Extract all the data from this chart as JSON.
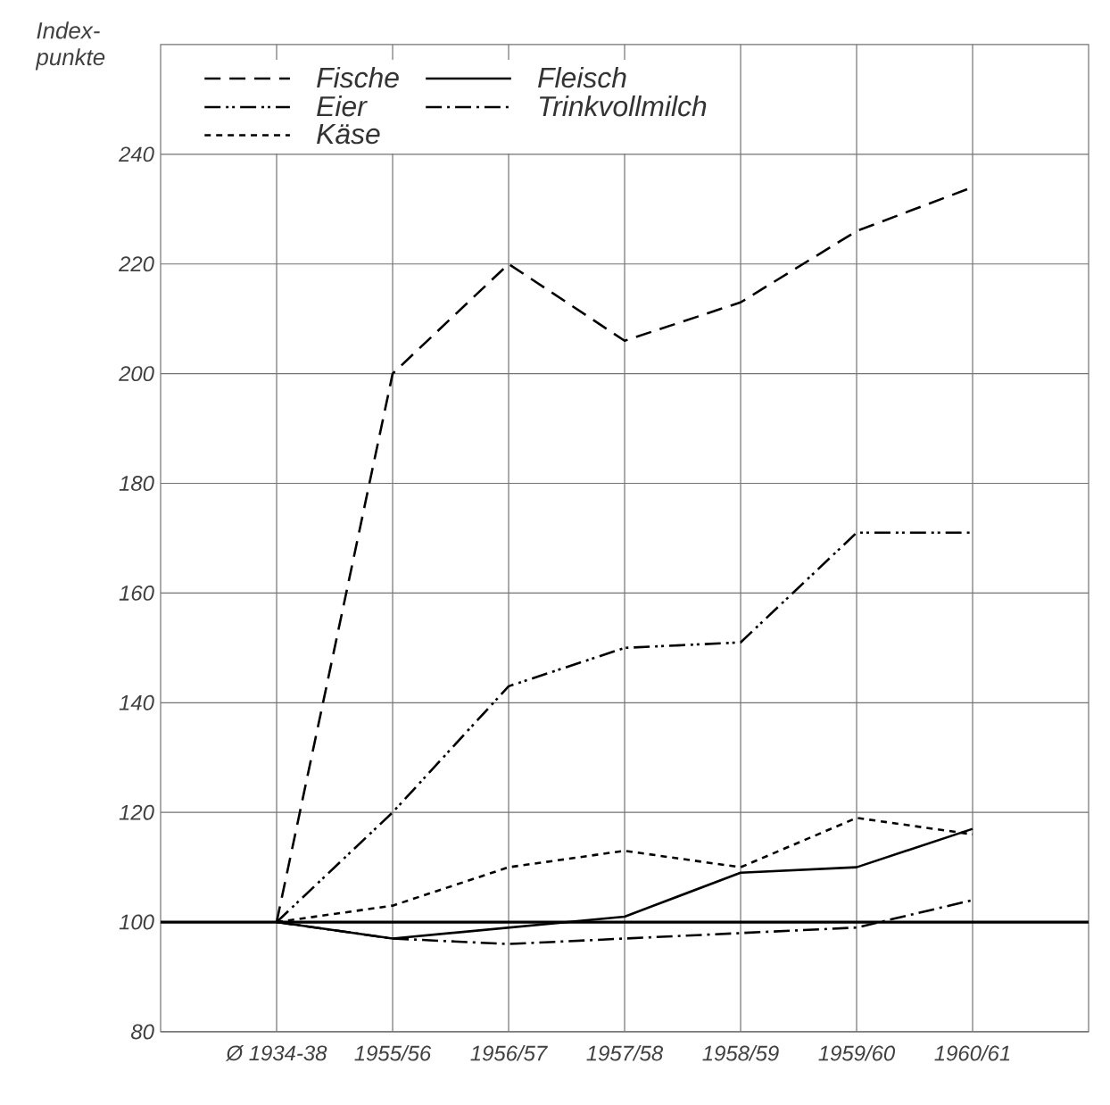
{
  "chart_data": {
    "type": "line",
    "ylabel": "Index-punkte",
    "categories": [
      "Ø 1934-38",
      "1955/56",
      "1956/57",
      "1957/58",
      "1958/59",
      "1959/60",
      "1960/61"
    ],
    "series": [
      {
        "name": "Fische",
        "color": "#000000",
        "line_style": "dashed",
        "values": [
          100,
          200,
          220,
          206,
          213,
          226,
          234
        ]
      },
      {
        "name": "Fleisch",
        "color": "#000000",
        "line_style": "solid",
        "values": [
          100,
          97,
          99,
          101,
          109,
          110,
          117
        ]
      },
      {
        "name": "Eier",
        "color": "#000000",
        "line_style": "dashdotdot",
        "values": [
          100,
          120,
          143,
          150,
          151,
          171,
          171
        ]
      },
      {
        "name": "Trinkvollmilch",
        "color": "#000000",
        "line_style": "dashdot",
        "values": [
          100,
          97,
          96,
          97,
          98,
          99,
          104
        ]
      },
      {
        "name": "Käse",
        "color": "#000000",
        "line_style": "dotted",
        "values": [
          100,
          103,
          110,
          113,
          110,
          119,
          116
        ]
      }
    ],
    "ylim": [
      80,
      260
    ],
    "yticks": [
      80,
      100,
      120,
      140,
      160,
      180,
      200,
      220,
      240
    ],
    "ref_lines": [
      {
        "axis": "y",
        "value": 100
      }
    ],
    "grid": true,
    "legend": "top left",
    "marker": "none"
  }
}
